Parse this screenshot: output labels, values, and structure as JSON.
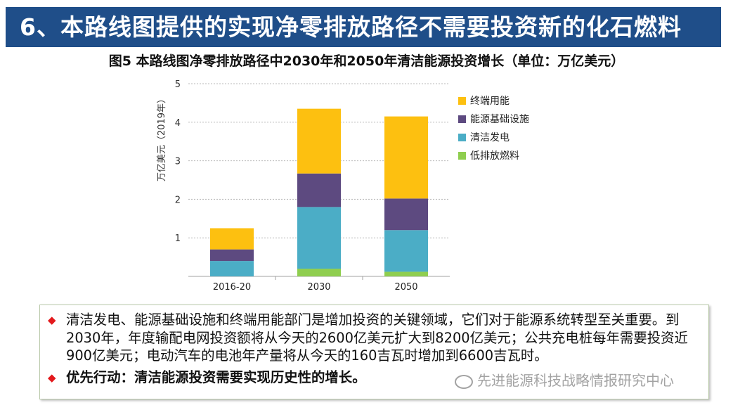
{
  "header": {
    "title": "6、本路线图提供的实现净零排放路径不需要投资新的化石燃料"
  },
  "chart_data": {
    "type": "bar",
    "stacked": true,
    "title": "图5 本路线图净零排放路径中2030年和2050年清洁能源投资增长（单位：万亿美元）",
    "ylabel": "万亿美元（2019年）",
    "xlabel": "",
    "categories": [
      "2016-20",
      "2030",
      "2050"
    ],
    "ylim": [
      0,
      5
    ],
    "yticks": [
      "1",
      "2",
      "3",
      "4",
      "5"
    ],
    "grid": true,
    "legend_position": "right",
    "series": [
      {
        "name": "低排放燃料",
        "color": "#8fce4f",
        "values": [
          0.0,
          0.2,
          0.12
        ]
      },
      {
        "name": "清洁发电",
        "color": "#4badc6",
        "values": [
          0.4,
          1.6,
          1.08
        ]
      },
      {
        "name": "能源基础设施",
        "color": "#5d4a80",
        "values": [
          0.3,
          0.87,
          0.82
        ]
      },
      {
        "name": "终端用能",
        "color": "#fdc010",
        "values": [
          0.55,
          1.68,
          2.13
        ]
      }
    ]
  },
  "notes": {
    "bullet1": "清洁发电、能源基础设施和终端用能部门是增加投资的关键领域，它们对于能源系统转型至关重要。到2030年，年度输配电网投资额将从今天的2600亿美元扩大到8200亿美元；公共充电桩每年需要投资近900亿美元；电动汽车的电池年产量将从今天的160吉瓦时增加到6600吉瓦时。",
    "bullet2": "优先行动：清洁能源投资需要实现历史性的增长。",
    "watermark": "先进能源科技战略情报研究中心"
  }
}
